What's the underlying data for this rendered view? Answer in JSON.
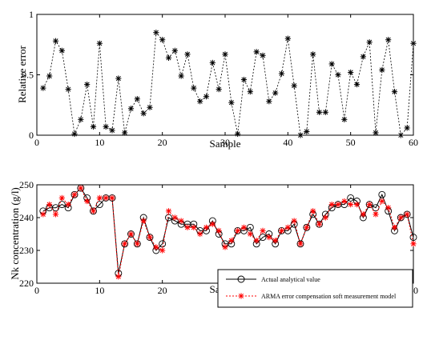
{
  "chart_data": [
    {
      "type": "line",
      "xlabel": "Sample",
      "ylabel": "Relative error",
      "xlim": [
        0,
        60
      ],
      "ylim": [
        0,
        1
      ],
      "xticks": [
        "0",
        "10",
        "20",
        "30",
        "40",
        "50",
        "60"
      ],
      "yticks": [
        "0",
        "0.5",
        "1"
      ],
      "series": [
        {
          "style": "dotted-black-star",
          "x": [
            1,
            2,
            3,
            4,
            5,
            6,
            7,
            8,
            9,
            10,
            11,
            12,
            13,
            14,
            15,
            16,
            17,
            18,
            19,
            20,
            21,
            22,
            23,
            24,
            25,
            26,
            27,
            28,
            29,
            30,
            31,
            32,
            33,
            34,
            35,
            36,
            37,
            38,
            39,
            40,
            41,
            42,
            43,
            44,
            45,
            46,
            47,
            48,
            49,
            50,
            51,
            52,
            53,
            54,
            55,
            56,
            57,
            58,
            59,
            60
          ],
          "values": [
            0.39,
            0.49,
            0.78,
            0.7,
            0.38,
            0.01,
            0.13,
            0.42,
            0.07,
            0.76,
            0.07,
            0.04,
            0.47,
            0.02,
            0.22,
            0.3,
            0.18,
            0.23,
            0.85,
            0.79,
            0.64,
            0.7,
            0.49,
            0.67,
            0.39,
            0.28,
            0.32,
            0.6,
            0.38,
            0.67,
            0.27,
            0.01,
            0.46,
            0.36,
            0.69,
            0.66,
            0.28,
            0.35,
            0.51,
            0.8,
            0.41,
            0.0,
            0.03,
            0.67,
            0.19,
            0.19,
            0.59,
            0.5,
            0.13,
            0.52,
            0.42,
            0.65,
            0.77,
            0.02,
            0.54,
            0.79,
            0.36,
            0.0,
            0.06,
            0.76
          ]
        }
      ]
    },
    {
      "type": "line",
      "xlabel": "Sample",
      "ylabel": "Nk concentration (g/l)",
      "xlim": [
        0,
        60
      ],
      "ylim": [
        220,
        250
      ],
      "xticks": [
        "0",
        "10",
        "20",
        "30",
        "40",
        "50",
        "60"
      ],
      "yticks": [
        "220",
        "230",
        "240",
        "250"
      ],
      "legend_position": "bottom-right",
      "series": [
        {
          "name": "Actual analytical value",
          "style": "solid-black-circle",
          "values": [
            242,
            243,
            243,
            244,
            243,
            247,
            249,
            246,
            242,
            244,
            246,
            246,
            223,
            232,
            235,
            232,
            240,
            234,
            230,
            232,
            240,
            239,
            238,
            238,
            238,
            236,
            236,
            239,
            235,
            232,
            232,
            236,
            236,
            237,
            232,
            234,
            235,
            232,
            236,
            236,
            238,
            232,
            237,
            241,
            238,
            241,
            243,
            244,
            244,
            246,
            245,
            240,
            244,
            243,
            247,
            242,
            236,
            240,
            241,
            234
          ]
        },
        {
          "name": "ARMA error compensation soft measurement model",
          "style": "dotted-red-star",
          "values": [
            241,
            244,
            241,
            246,
            244,
            247,
            249,
            245,
            242,
            246,
            246,
            246,
            222,
            232,
            235,
            232,
            239,
            234,
            231,
            230,
            242,
            240,
            239,
            237,
            237,
            235,
            237,
            238,
            236,
            231,
            233,
            236,
            237,
            235,
            233,
            236,
            234,
            233,
            236,
            237,
            239,
            232,
            237,
            242,
            238,
            240,
            244,
            244,
            245,
            244,
            244,
            241,
            244,
            241,
            245,
            243,
            237,
            240,
            241,
            232
          ]
        }
      ]
    }
  ]
}
